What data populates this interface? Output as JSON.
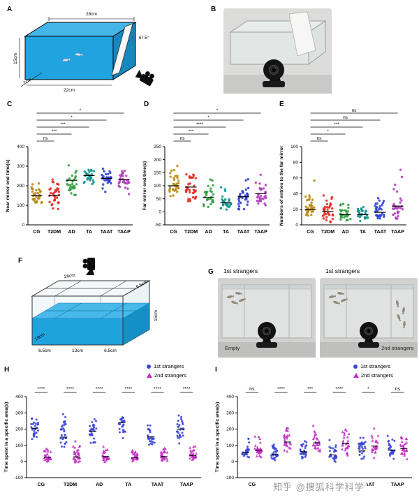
{
  "panel_labels": [
    "A",
    "B",
    "C",
    "D",
    "E",
    "F",
    "G",
    "H",
    "I"
  ],
  "watermark": "知乎 @搜狐科学科学",
  "diagram_a": {
    "labels": {
      "top": "28cm",
      "left": "15cm",
      "bottom": "22cm",
      "depth": "7cm",
      "angle": "67.5°"
    }
  },
  "diagram_f": {
    "labels": {
      "top": "26cm",
      "top_right": "9.5cm",
      "right": "15cm",
      "bottom_left": "6.5cm",
      "bottom_mid": "13cm",
      "bottom_right": "6.5cm",
      "depth": "19cm"
    }
  },
  "photo_g": {
    "left_title": "1st strangers",
    "right_title": "1st strangers",
    "left_caption": "Empty",
    "right_caption": "2nd strangers"
  },
  "legend": {
    "s1": "1st strangers",
    "s2": "2nd strangers",
    "s1_color": "#3A45D6",
    "s2_color": "#C52BC7"
  },
  "chart_data": [
    {
      "panel": "C",
      "type": "scatter",
      "ylabel": "Near mirror end time(s)",
      "ylim": [
        0,
        400
      ],
      "yticks": [
        0,
        100,
        200,
        300,
        400
      ],
      "categories": [
        "CG",
        "T2DM",
        "AD",
        "TA",
        "TAAT",
        "TAAP"
      ],
      "colors": [
        "#B8860B",
        "#E3261E",
        "#2E9E3C",
        "#0F918B",
        "#2B3FD0",
        "#AE3CB8"
      ],
      "groups": [
        {
          "label": "CG",
          "median": 150,
          "range": [
            70,
            255
          ],
          "n": 32
        },
        {
          "label": "T2DM",
          "median": 150,
          "range": [
            45,
            265
          ],
          "n": 34
        },
        {
          "label": "AD",
          "median": 228,
          "range": [
            130,
            310
          ],
          "n": 30
        },
        {
          "label": "TA",
          "median": 252,
          "range": [
            175,
            320
          ],
          "n": 28
        },
        {
          "label": "TAAT",
          "median": 238,
          "range": [
            120,
            325
          ],
          "n": 30
        },
        {
          "label": "TAAP",
          "median": 232,
          "range": [
            150,
            310
          ],
          "n": 30
        }
      ],
      "significance": [
        {
          "from": "CG",
          "to": "T2DM",
          "label": "ns"
        },
        {
          "from": "CG",
          "to": "AD",
          "label": "***"
        },
        {
          "from": "CG",
          "to": "TA",
          "label": "***"
        },
        {
          "from": "CG",
          "to": "TAAT",
          "label": "*"
        },
        {
          "from": "CG",
          "to": "TAAP",
          "label": "*"
        }
      ]
    },
    {
      "panel": "D",
      "type": "scatter",
      "ylabel": "Far mirror end time(s)",
      "ylim": [
        -50,
        250
      ],
      "yticks": [
        -50,
        0,
        50,
        100,
        150,
        200,
        250
      ],
      "categories": [
        "CG",
        "T2DM",
        "AD",
        "TA",
        "TAAT",
        "TAAP"
      ],
      "colors": [
        "#B8860B",
        "#E3261E",
        "#2E9E3C",
        "#0F918B",
        "#2B3FD0",
        "#AE3CB8"
      ],
      "groups": [
        {
          "label": "CG",
          "median": 100,
          "range": [
            30,
            190
          ],
          "n": 32
        },
        {
          "label": "T2DM",
          "median": 95,
          "range": [
            10,
            210
          ],
          "n": 34
        },
        {
          "label": "AD",
          "median": 55,
          "range": [
            0,
            155
          ],
          "n": 30
        },
        {
          "label": "TA",
          "median": 35,
          "range": [
            -5,
            125
          ],
          "n": 28
        },
        {
          "label": "TAAT",
          "median": 58,
          "range": [
            0,
            150
          ],
          "n": 30
        },
        {
          "label": "TAAP",
          "median": 70,
          "range": [
            0,
            165
          ],
          "n": 30
        }
      ],
      "significance": [
        {
          "from": "CG",
          "to": "T2DM",
          "label": "ns"
        },
        {
          "from": "CG",
          "to": "AD",
          "label": "***"
        },
        {
          "from": "CG",
          "to": "TA",
          "label": "****"
        },
        {
          "from": "CG",
          "to": "TAAT",
          "label": "*"
        },
        {
          "from": "CG",
          "to": "TAAP",
          "label": "*"
        }
      ]
    },
    {
      "panel": "E",
      "type": "scatter",
      "ylabel": "Numbers of entries to the far mirror",
      "ylim": [
        0,
        100
      ],
      "yticks": [
        0,
        20,
        40,
        60,
        80,
        100
      ],
      "categories": [
        "CG",
        "T2DM",
        "AD",
        "TA",
        "TAAT",
        "TAAP"
      ],
      "colors": [
        "#B8860B",
        "#E3261E",
        "#2E9E3C",
        "#0F918B",
        "#2B3FD0",
        "#AE3CB8"
      ],
      "groups": [
        {
          "label": "CG",
          "median": 20,
          "range": [
            4,
            58
          ],
          "n": 32
        },
        {
          "label": "T2DM",
          "median": 17,
          "range": [
            2,
            46
          ],
          "n": 34
        },
        {
          "label": "AD",
          "median": 13,
          "range": [
            2,
            40
          ],
          "n": 30
        },
        {
          "label": "TA",
          "median": 13,
          "range": [
            2,
            36
          ],
          "n": 28
        },
        {
          "label": "TAAT",
          "median": 16,
          "range": [
            2,
            46
          ],
          "n": 30
        },
        {
          "label": "TAAP",
          "median": 24,
          "range": [
            3,
            90
          ],
          "n": 30
        }
      ],
      "significance": [
        {
          "from": "CG",
          "to": "T2DM",
          "label": "ns"
        },
        {
          "from": "CG",
          "to": "AD",
          "label": "*"
        },
        {
          "from": "CG",
          "to": "TA",
          "label": "***"
        },
        {
          "from": "CG",
          "to": "TAAT",
          "label": "ns"
        },
        {
          "from": "CG",
          "to": "TAAP",
          "label": "ns"
        }
      ]
    },
    {
      "panel": "H",
      "type": "paired-scatter",
      "ylabel": "Time spent in a specific area(s)",
      "ylim": [
        -100,
        400
      ],
      "yticks": [
        -100,
        0,
        100,
        200,
        300,
        400
      ],
      "categories": [
        "CG",
        "T2DM",
        "AD",
        "TA",
        "TAAT",
        "TAAP"
      ],
      "series": [
        {
          "name": "1st strangers",
          "marker": "circle",
          "color": "#3A45D6"
        },
        {
          "name": "2nd strangers",
          "marker": "triangle",
          "color": "#C52BC7"
        }
      ],
      "groups": [
        {
          "label": "CG",
          "sig": "****",
          "s1": {
            "median": 205,
            "range": [
              95,
              325
            ],
            "n": 28
          },
          "s2": {
            "median": 25,
            "range": [
              -15,
              130
            ],
            "n": 28
          }
        },
        {
          "label": "T2DM",
          "sig": "****",
          "s1": {
            "median": 150,
            "range": [
              40,
              330
            ],
            "n": 30
          },
          "s2": {
            "median": 28,
            "range": [
              -20,
              150
            ],
            "n": 30
          }
        },
        {
          "label": "AD",
          "sig": "****",
          "s1": {
            "median": 185,
            "range": [
              55,
              330
            ],
            "n": 28
          },
          "s2": {
            "median": 30,
            "range": [
              -10,
              150
            ],
            "n": 28
          }
        },
        {
          "label": "TA",
          "sig": "****",
          "s1": {
            "median": 240,
            "range": [
              100,
              340
            ],
            "n": 28
          },
          "s2": {
            "median": 22,
            "range": [
              -10,
              105
            ],
            "n": 28
          }
        },
        {
          "label": "TAAT",
          "sig": "****",
          "s1": {
            "median": 152,
            "range": [
              35,
              300
            ],
            "n": 28
          },
          "s2": {
            "median": 30,
            "range": [
              -15,
              125
            ],
            "n": 28
          }
        },
        {
          "label": "TAAP",
          "sig": "****",
          "s1": {
            "median": 200,
            "range": [
              60,
              330
            ],
            "n": 28
          },
          "s2": {
            "median": 35,
            "range": [
              -10,
              150
            ],
            "n": 28
          }
        }
      ]
    },
    {
      "panel": "I",
      "type": "paired-scatter",
      "ylabel": "Time spent in a specific area(s)",
      "ylim": [
        -100,
        400
      ],
      "yticks": [
        -100,
        0,
        100,
        200,
        300,
        400
      ],
      "categories": [
        "CG",
        "T2DM",
        "AD",
        "TA",
        "TAAT",
        "TAAP"
      ],
      "series": [
        {
          "name": "1st strangers",
          "marker": "circle",
          "color": "#3A45D6"
        },
        {
          "name": "2nd strangers",
          "marker": "triangle",
          "color": "#C52BC7"
        }
      ],
      "groups": [
        {
          "label": "CG",
          "sig": "ns",
          "s1": {
            "median": 55,
            "range": [
              0,
              175
            ],
            "n": 28
          },
          "s2": {
            "median": 70,
            "range": [
              0,
              200
            ],
            "n": 28
          }
        },
        {
          "label": "T2DM",
          "sig": "****",
          "s1": {
            "median": 45,
            "range": [
              -10,
              160
            ],
            "n": 30
          },
          "s2": {
            "median": 120,
            "range": [
              20,
              260
            ],
            "n": 30
          }
        },
        {
          "label": "AD",
          "sig": "***",
          "s1": {
            "median": 60,
            "range": [
              0,
              170
            ],
            "n": 28
          },
          "s2": {
            "median": 115,
            "range": [
              10,
              250
            ],
            "n": 28
          }
        },
        {
          "label": "TA",
          "sig": "****",
          "s1": {
            "median": 40,
            "range": [
              -20,
              150
            ],
            "n": 28
          },
          "s2": {
            "median": 110,
            "range": [
              10,
              240
            ],
            "n": 28
          }
        },
        {
          "label": "TAAT",
          "sig": "*",
          "s1": {
            "median": 65,
            "range": [
              -10,
              200
            ],
            "n": 28
          },
          "s2": {
            "median": 95,
            "range": [
              0,
              230
            ],
            "n": 28
          }
        },
        {
          "label": "TAAP",
          "sig": "ns",
          "s1": {
            "median": 70,
            "range": [
              0,
              210
            ],
            "n": 28
          },
          "s2": {
            "median": 80,
            "range": [
              0,
              200
            ],
            "n": 28
          }
        }
      ]
    }
  ]
}
